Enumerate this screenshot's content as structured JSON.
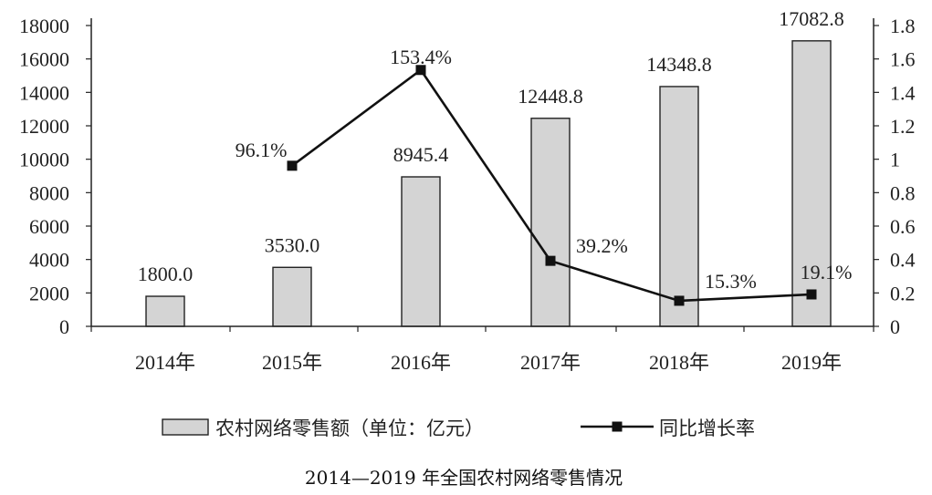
{
  "chart_data": {
    "type": "bar",
    "categories": [
      "2014年",
      "2015年",
      "2016年",
      "2017年",
      "2018年",
      "2019年"
    ],
    "series": [
      {
        "name": "农村网络零售额（单位：亿元）",
        "type": "bar",
        "axis": "left",
        "values": [
          1800.0,
          3530.0,
          8945.4,
          12448.8,
          14348.8,
          17082.8
        ],
        "labels": [
          "1800.0",
          "3530.0",
          "8945.4",
          "12448.8",
          "14348.8",
          "17082.8"
        ],
        "color": "#d4d4d4"
      },
      {
        "name": "同比增长率",
        "type": "line",
        "axis": "right",
        "values": [
          null,
          0.961,
          1.534,
          0.392,
          0.153,
          0.191
        ],
        "labels": [
          "",
          "96.1%",
          "153.4%",
          "39.2%",
          "15.3%",
          "19.1%"
        ],
        "color": "#111111"
      }
    ],
    "y_left": {
      "ylim": [
        0,
        18000
      ],
      "ticks": [
        "0",
        "2000",
        "4000",
        "6000",
        "8000",
        "10000",
        "12000",
        "14000",
        "16000",
        "18000"
      ]
    },
    "y_right": {
      "ylim": [
        0,
        1.8
      ],
      "ticks": [
        "0",
        "0.2",
        "0.4",
        "0.6",
        "0.8",
        "1",
        "1.2",
        "1.4",
        "1.6",
        "1.8"
      ]
    },
    "grid": false,
    "legend_position": "bottom",
    "caption": "2014—2019 年全国农村网络零售情况"
  }
}
